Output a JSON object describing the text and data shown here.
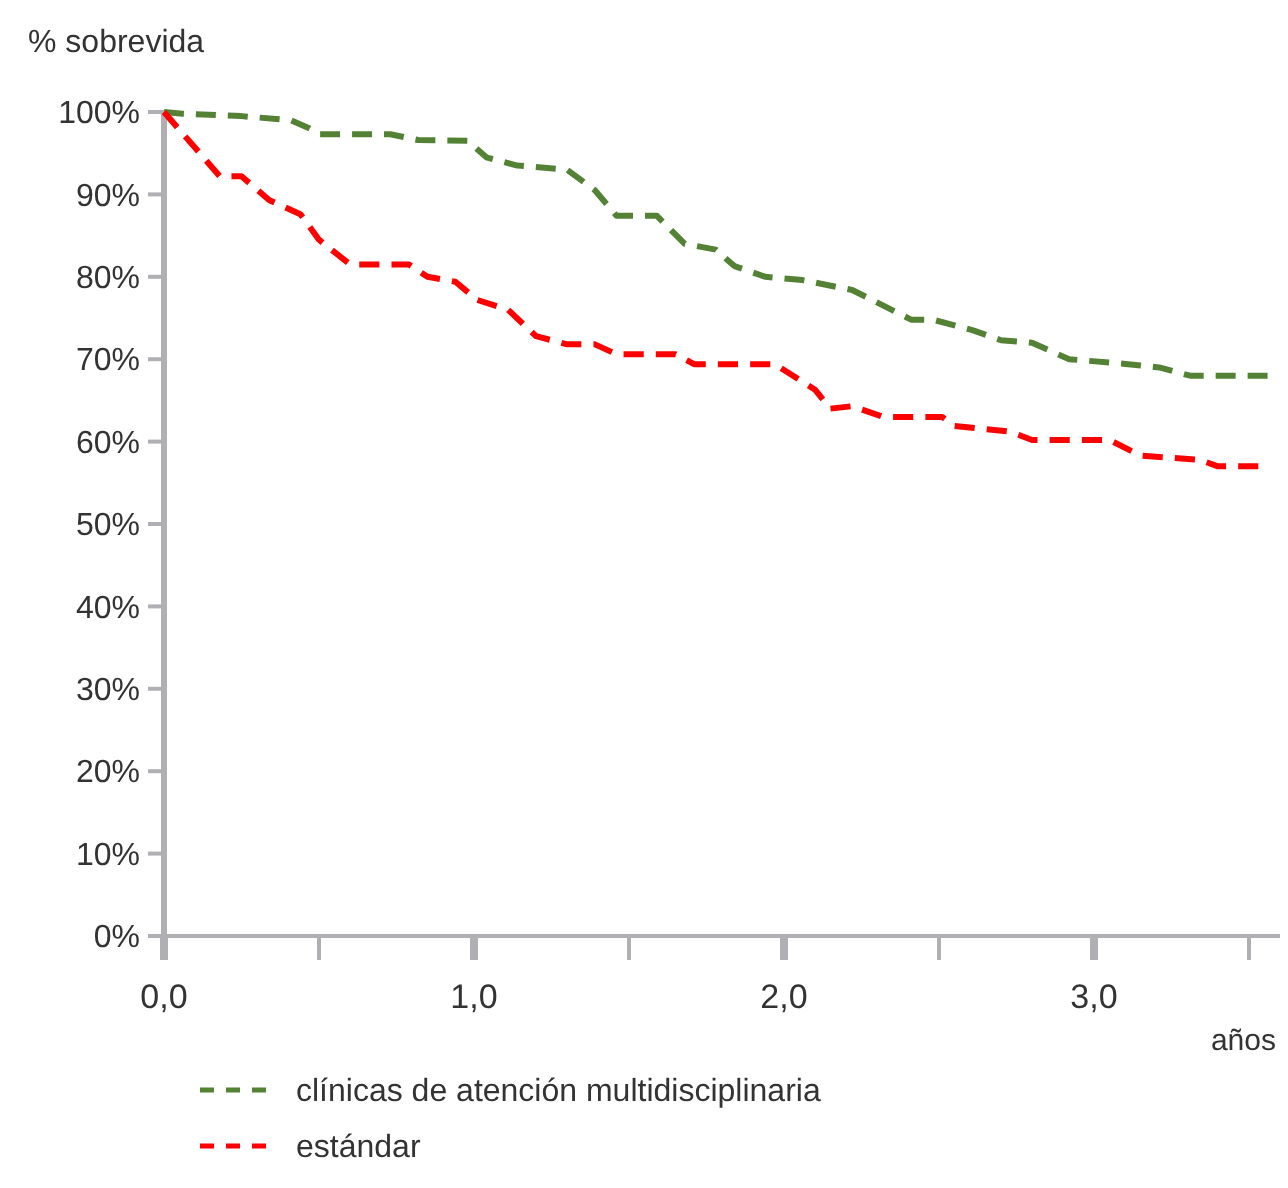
{
  "chart_data": {
    "type": "line",
    "xlabel": "años",
    "ylabel": "% sobrevida",
    "line_style": "dashed",
    "marker": "none",
    "grid": false,
    "legend": "bottom left",
    "xlim": [
      0,
      3.6
    ],
    "xticks": [
      {
        "value": 0,
        "label": "0,0"
      },
      {
        "value": 0.5,
        "label": null
      },
      {
        "value": 1,
        "label": "1,0"
      },
      {
        "value": 1.5,
        "label": null
      },
      {
        "value": 2,
        "label": "2,0"
      },
      {
        "value": 2.5,
        "label": null
      },
      {
        "value": 3,
        "label": "3,0"
      },
      {
        "value": 3.5,
        "label": null
      }
    ],
    "ylim": [
      0,
      100
    ],
    "yticks": [
      {
        "value": 0,
        "label": "0%"
      },
      {
        "value": 10,
        "label": "10%"
      },
      {
        "value": 20,
        "label": "20%"
      },
      {
        "value": 30,
        "label": "30%"
      },
      {
        "value": 40,
        "label": "40%"
      },
      {
        "value": 50,
        "label": "50%"
      },
      {
        "value": 60,
        "label": "60%"
      },
      {
        "value": 70,
        "label": "70%"
      },
      {
        "value": 80,
        "label": "80%"
      },
      {
        "value": 90,
        "label": "90%"
      },
      {
        "value": 100,
        "label": "100%"
      }
    ],
    "series": [
      {
        "name": "clínicas de atención multidisciplinaria",
        "color": "#548235",
        "x": [
          0,
          0.06,
          0.25,
          0.41,
          0.47,
          0.5,
          0.73,
          0.82,
          0.98,
          1.04,
          1.14,
          1.3,
          1.39,
          1.46,
          1.59,
          1.68,
          1.78,
          1.84,
          1.94,
          2.06,
          2.22,
          2.41,
          2.48,
          2.61,
          2.7,
          2.8,
          2.92,
          3.11,
          3.21,
          3.31,
          3.56
        ],
        "values": [
          100,
          99.8,
          99.5,
          99,
          98,
          97.3,
          97.3,
          96.6,
          96.5,
          94.5,
          93.5,
          93,
          90.5,
          87.4,
          87.4,
          84,
          83.3,
          81.3,
          80,
          79.6,
          78.4,
          74.8,
          74.8,
          73.5,
          72.3,
          72,
          70,
          69.4,
          69,
          68,
          68
        ]
      },
      {
        "name": "estándar",
        "color": "#ff0000",
        "x": [
          0,
          0.18,
          0.25,
          0.34,
          0.44,
          0.5,
          0.6,
          0.79,
          0.85,
          0.94,
          1.01,
          1.11,
          1.2,
          1.3,
          1.39,
          1.46,
          1.65,
          1.71,
          1.97,
          2.1,
          2.15,
          2.22,
          2.32,
          2.51,
          2.55,
          2.73,
          2.8,
          3.05,
          3.15,
          3.34,
          3.4,
          3.53
        ],
        "values": [
          100,
          92.2,
          92.2,
          89.3,
          87.6,
          84.5,
          81.5,
          81.5,
          80,
          79.4,
          77.2,
          76,
          72.8,
          71.8,
          71.8,
          70.6,
          70.6,
          69.4,
          69.4,
          66.3,
          64,
          64.3,
          63,
          63,
          61.9,
          61.2,
          60.2,
          60.2,
          58.3,
          57.8,
          57,
          57
        ]
      }
    ]
  }
}
